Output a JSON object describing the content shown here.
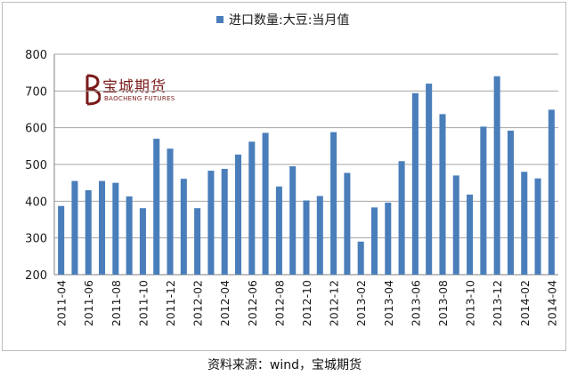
{
  "legend": {
    "label": "进口数量:大豆:当月值",
    "color": "#4a7ebb"
  },
  "logo": {
    "mark_text": "宝城期货",
    "sub_text": "BAOCHENG FUTURES",
    "color": "#7b1b1b"
  },
  "source": "资料来源：wind，宝城期货",
  "chart_data": {
    "type": "bar",
    "title": "",
    "xlabel": "",
    "ylabel": "",
    "ylim": [
      200,
      800
    ],
    "yticks": [
      200,
      300,
      400,
      500,
      600,
      700,
      800
    ],
    "grid": true,
    "legend_position": "top-center",
    "categories": [
      "2011-04",
      "2011-05",
      "2011-06",
      "2011-07",
      "2011-08",
      "2011-09",
      "2011-10",
      "2011-11",
      "2011-12",
      "2012-01",
      "2012-02",
      "2012-03",
      "2012-04",
      "2012-05",
      "2012-06",
      "2012-07",
      "2012-08",
      "2012-09",
      "2012-10",
      "2012-11",
      "2012-12",
      "2013-01",
      "2013-02",
      "2013-03",
      "2013-04",
      "2013-05",
      "2013-06",
      "2013-07",
      "2013-08",
      "2013-09",
      "2013-10",
      "2013-11",
      "2013-12",
      "2014-01",
      "2014-02",
      "2014-03",
      "2014-04"
    ],
    "tick_labels": [
      "2011-04",
      "2011-06",
      "2011-08",
      "2011-10",
      "2011-12",
      "2012-02",
      "2012-04",
      "2012-06",
      "2012-08",
      "2012-10",
      "2012-12",
      "2013-02",
      "2013-04",
      "2013-06",
      "2013-08",
      "2013-10",
      "2013-12",
      "2014-02",
      "2014-04"
    ],
    "series": [
      {
        "name": "进口数量:大豆:当月值",
        "values": [
          387,
          455,
          430,
          455,
          450,
          413,
          381,
          570,
          543,
          461,
          381,
          483,
          488,
          527,
          562,
          586,
          440,
          495,
          402,
          414,
          588,
          477,
          290,
          383,
          396,
          509,
          694,
          720,
          637,
          470,
          418,
          603,
          740,
          592,
          480,
          462,
          649
        ]
      }
    ]
  }
}
